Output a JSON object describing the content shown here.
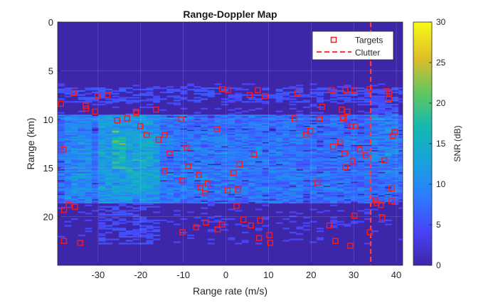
{
  "chart_data": {
    "type": "heatmap",
    "title": "Range-Doppler Map",
    "xlabel": "Range rate (m/s)",
    "ylabel": "Range (km)",
    "xlim": [
      -39.5,
      41.5
    ],
    "ylim": [
      0,
      25
    ],
    "y_reversed": true,
    "xticks": [
      -30,
      -20,
      -10,
      0,
      10,
      20,
      30,
      40
    ],
    "yticks": [
      0,
      5,
      10,
      15,
      20
    ],
    "grid": true,
    "colormap": "parula",
    "colorbar": {
      "label": "SNR (dB)",
      "range": [
        0,
        30
      ],
      "ticks": [
        0,
        5,
        10,
        15,
        20,
        25,
        30
      ]
    },
    "heatmap_extent": {
      "range_km": [
        6.3,
        22.7
      ],
      "strong_band_km": [
        9.5,
        18.5
      ]
    },
    "legend": {
      "placement": "top-right",
      "entries": [
        "Targets",
        "Clutter"
      ]
    },
    "colors": {
      "targets": "#ff1a1a",
      "clutter": "#ff3c3c",
      "background": "#3d26a8"
    },
    "series": [
      {
        "name": "Targets",
        "kind": "scatter",
        "points": [
          [
            -38.7,
            8.4
          ],
          [
            -38.1,
            13.1
          ],
          [
            -38.0,
            19.3
          ],
          [
            -38.0,
            22.5
          ],
          [
            -36.9,
            18.8
          ],
          [
            -35.8,
            7.3
          ],
          [
            -35.4,
            19.0
          ],
          [
            -34.2,
            22.7
          ],
          [
            -32.9,
            8.6
          ],
          [
            -32.8,
            8.9
          ],
          [
            -30.7,
            9.2
          ],
          [
            -30.1,
            7.6
          ],
          [
            -27.8,
            7.5
          ],
          [
            -25.5,
            10.1
          ],
          [
            -23.2,
            9.9
          ],
          [
            -21.1,
            9.2
          ],
          [
            -21.0,
            9.4
          ],
          [
            -20.1,
            10.7
          ],
          [
            -18.6,
            11.6
          ],
          [
            -16.4,
            9.0
          ],
          [
            -15.8,
            12.1
          ],
          [
            -14.4,
            11.6
          ],
          [
            -14.4,
            15.3
          ],
          [
            -13.2,
            13.5
          ],
          [
            -10.5,
            10.0
          ],
          [
            -10.3,
            16.3
          ],
          [
            -10.2,
            21.6
          ],
          [
            -9.2,
            12.9
          ],
          [
            -8.8,
            14.8
          ],
          [
            -7.0,
            21.1
          ],
          [
            -6.3,
            15.7
          ],
          [
            -6.0,
            17.0
          ],
          [
            -4.9,
            17.6
          ],
          [
            -4.7,
            20.6
          ],
          [
            -4.3,
            16.6
          ],
          [
            -2.1,
            11.0
          ],
          [
            -1.9,
            21.3
          ],
          [
            -0.9,
            20.8
          ],
          [
            -0.9,
            6.9
          ],
          [
            0.5,
            7.0
          ],
          [
            0.4,
            17.3
          ],
          [
            1.8,
            15.5
          ],
          [
            2.5,
            18.9
          ],
          [
            2.8,
            17.2
          ],
          [
            3.2,
            14.6
          ],
          [
            4.1,
            20.3
          ],
          [
            5.6,
            7.5
          ],
          [
            5.9,
            20.9
          ],
          [
            6.6,
            13.6
          ],
          [
            7.5,
            7.0
          ],
          [
            7.8,
            22.2
          ],
          [
            8.0,
            20.4
          ],
          [
            9.2,
            7.6
          ],
          [
            10.2,
            21.9
          ],
          [
            10.4,
            22.7
          ],
          [
            16.1,
            9.9
          ],
          [
            16.8,
            7.3
          ],
          [
            18.8,
            11.6
          ],
          [
            19.8,
            11.2
          ],
          [
            21.5,
            16.5
          ],
          [
            22.0,
            10.0
          ],
          [
            22.6,
            8.7
          ],
          [
            24.3,
            20.9
          ],
          [
            24.9,
            7.0
          ],
          [
            25.2,
            12.8
          ],
          [
            25.7,
            22.5
          ],
          [
            26.8,
            12.3
          ],
          [
            27.2,
            9.0
          ],
          [
            27.4,
            9.8
          ],
          [
            27.6,
            9.9
          ],
          [
            28.0,
            7.0
          ],
          [
            27.9,
            13.5
          ],
          [
            28.0,
            14.9
          ],
          [
            28.5,
            9.2
          ],
          [
            29.2,
            23.0
          ],
          [
            29.4,
            10.7
          ],
          [
            29.7,
            14.3
          ],
          [
            30.1,
            7.0
          ],
          [
            30.2,
            19.9
          ],
          [
            30.4,
            10.7
          ],
          [
            31.4,
            13.1
          ],
          [
            32.8,
            13.7
          ],
          [
            33.7,
            6.9
          ],
          [
            33.8,
            21.6
          ],
          [
            35.1,
            18.3
          ],
          [
            35.4,
            18.6
          ],
          [
            36.4,
            18.8
          ],
          [
            36.7,
            20.1
          ],
          [
            37.2,
            14.2
          ],
          [
            37.7,
            7.1
          ],
          [
            38.3,
            7.9
          ],
          [
            38.4,
            7.3
          ],
          [
            38.9,
            18.4
          ],
          [
            38.9,
            17.1
          ],
          [
            39.2,
            11.7
          ],
          [
            39.6,
            11.3
          ]
        ]
      },
      {
        "name": "Clutter",
        "kind": "vertical-line",
        "x": 34
      }
    ]
  }
}
